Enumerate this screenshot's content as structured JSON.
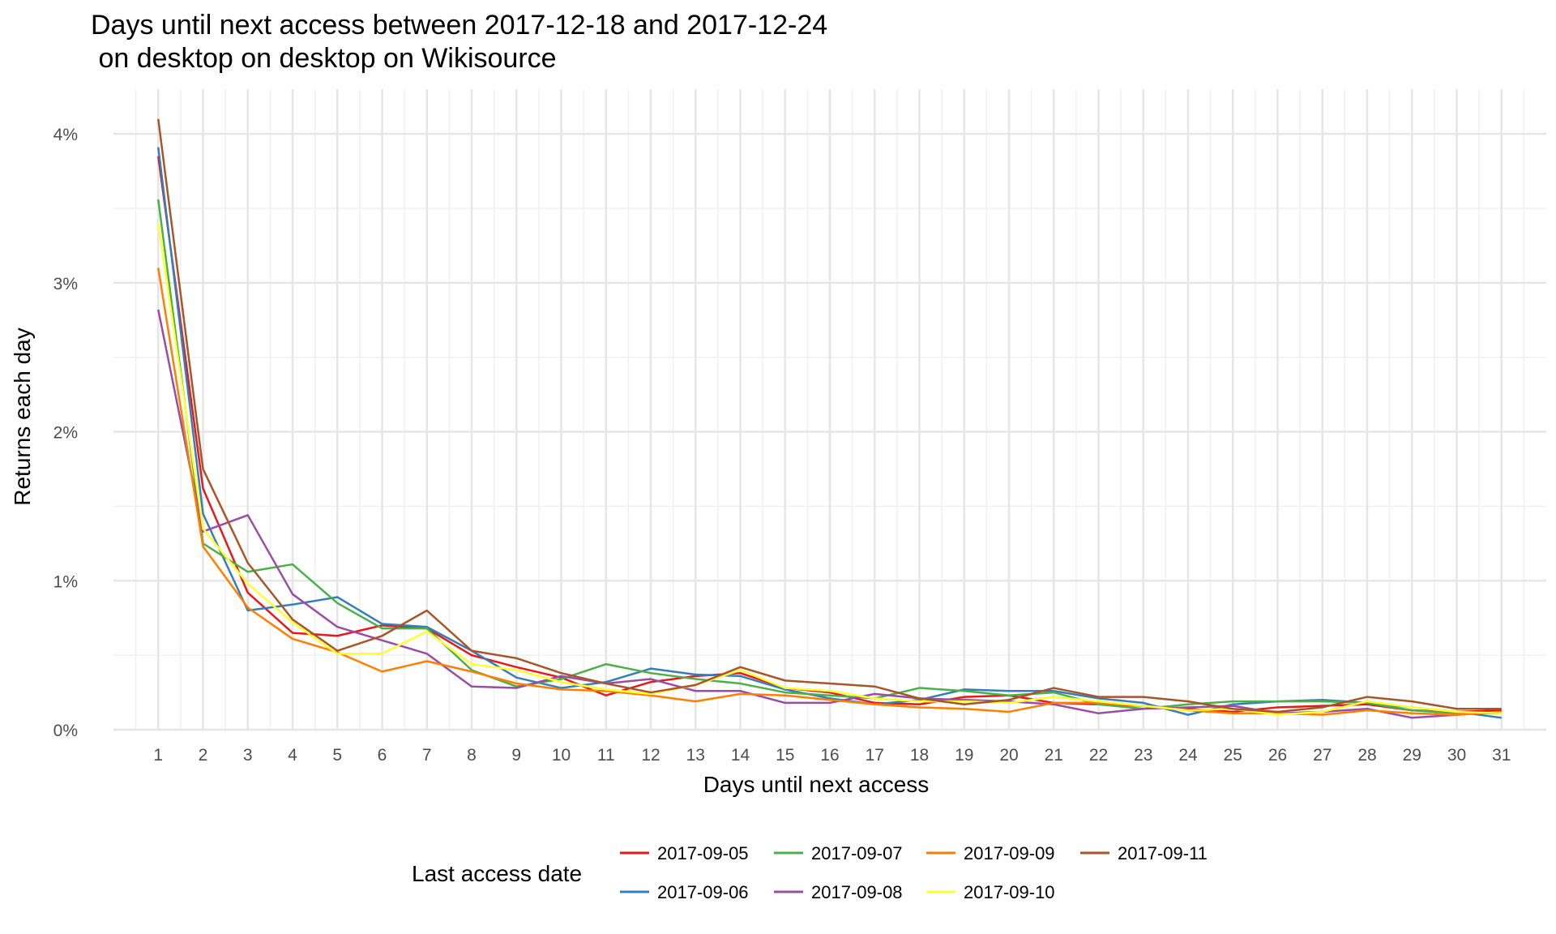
{
  "chart_data": {
    "type": "line",
    "title": "Days until next access between 2017-12-18 and 2017-12-24",
    "subtitle": " on desktop on desktop on Wikisource",
    "xlabel": "Days until next access",
    "ylabel": "Returns each day",
    "xlim": [
      0,
      32
    ],
    "ylim": [
      0,
      4.3
    ],
    "x": [
      1,
      2,
      3,
      4,
      5,
      6,
      7,
      8,
      9,
      10,
      11,
      12,
      13,
      14,
      15,
      16,
      17,
      18,
      19,
      20,
      21,
      22,
      23,
      24,
      25,
      26,
      27,
      28,
      29,
      30,
      31
    ],
    "y_ticks": [
      "0%",
      "1%",
      "2%",
      "3%",
      "4%"
    ],
    "grid": true,
    "legend_title": "Last access date",
    "legend_position": "bottom",
    "series": [
      {
        "name": "2017-09-05",
        "color": "#e41a1c",
        "values": [
          3.85,
          1.62,
          0.92,
          0.65,
          0.63,
          0.7,
          0.68,
          0.5,
          0.42,
          0.35,
          0.23,
          0.32,
          0.36,
          0.38,
          0.28,
          0.25,
          0.18,
          0.17,
          0.22,
          0.23,
          0.18,
          0.17,
          0.16,
          0.14,
          0.12,
          0.15,
          0.16,
          0.17,
          0.13,
          0.12,
          0.13
        ]
      },
      {
        "name": "2017-09-06",
        "color": "#377eb8",
        "values": [
          3.91,
          1.45,
          0.8,
          0.84,
          0.89,
          0.71,
          0.69,
          0.53,
          0.35,
          0.28,
          0.32,
          0.41,
          0.37,
          0.36,
          0.27,
          0.21,
          0.17,
          0.2,
          0.27,
          0.26,
          0.26,
          0.21,
          0.18,
          0.1,
          0.17,
          0.19,
          0.2,
          0.18,
          0.15,
          0.12,
          0.08
        ]
      },
      {
        "name": "2017-09-07",
        "color": "#4daf4a",
        "values": [
          3.56,
          1.25,
          1.06,
          1.11,
          0.85,
          0.68,
          0.68,
          0.4,
          0.29,
          0.34,
          0.44,
          0.38,
          0.34,
          0.31,
          0.25,
          0.23,
          0.21,
          0.28,
          0.26,
          0.23,
          0.25,
          0.17,
          0.14,
          0.17,
          0.19,
          0.19,
          0.19,
          0.18,
          0.13,
          0.11,
          0.11
        ]
      },
      {
        "name": "2017-09-08",
        "color": "#984ea3",
        "values": [
          2.82,
          1.33,
          1.44,
          0.91,
          0.69,
          0.6,
          0.51,
          0.29,
          0.28,
          0.36,
          0.31,
          0.34,
          0.26,
          0.26,
          0.18,
          0.18,
          0.24,
          0.21,
          0.2,
          0.19,
          0.17,
          0.11,
          0.14,
          0.15,
          0.16,
          0.11,
          0.12,
          0.14,
          0.08,
          0.1,
          0.12
        ]
      },
      {
        "name": "2017-09-09",
        "color": "#ff7f00",
        "values": [
          3.1,
          1.23,
          0.82,
          0.61,
          0.52,
          0.39,
          0.46,
          0.39,
          0.31,
          0.27,
          0.26,
          0.23,
          0.19,
          0.24,
          0.23,
          0.2,
          0.17,
          0.15,
          0.14,
          0.12,
          0.18,
          0.18,
          0.16,
          0.13,
          0.11,
          0.11,
          0.1,
          0.13,
          0.11,
          0.1,
          0.12
        ]
      },
      {
        "name": "2017-09-10",
        "color": "#ffff33",
        "values": [
          3.4,
          1.35,
          0.98,
          0.72,
          0.51,
          0.51,
          0.66,
          0.44,
          0.4,
          0.32,
          0.27,
          0.24,
          0.3,
          0.4,
          0.28,
          0.26,
          0.21,
          0.19,
          0.19,
          0.18,
          0.22,
          0.19,
          0.16,
          0.13,
          0.14,
          0.1,
          0.12,
          0.19,
          0.15,
          0.12,
          0.11
        ]
      },
      {
        "name": "2017-09-11",
        "color": "#a65628",
        "values": [
          4.1,
          1.75,
          1.12,
          0.74,
          0.53,
          0.63,
          0.8,
          0.53,
          0.48,
          0.38,
          0.31,
          0.25,
          0.3,
          0.42,
          0.33,
          0.31,
          0.29,
          0.21,
          0.17,
          0.2,
          0.28,
          0.22,
          0.22,
          0.19,
          0.14,
          0.12,
          0.15,
          0.22,
          0.19,
          0.14,
          0.14
        ]
      }
    ]
  }
}
